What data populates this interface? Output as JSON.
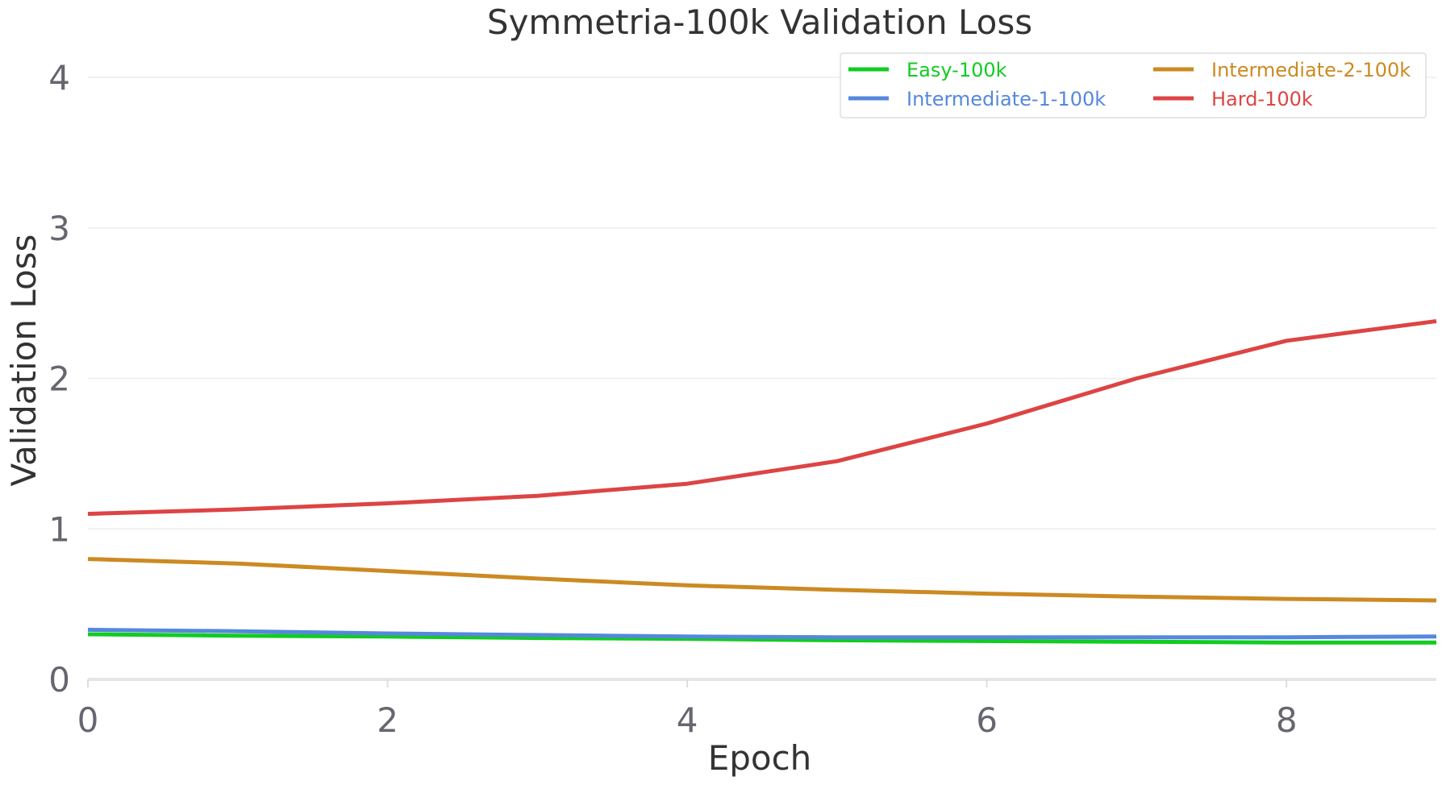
{
  "chart_data": {
    "type": "line",
    "title": "Symmetria-100k Validation Loss",
    "xlabel": "Epoch",
    "ylabel": "Validation Loss",
    "x": [
      0,
      1,
      2,
      3,
      4,
      5,
      6,
      7,
      8,
      9
    ],
    "xlim": [
      0,
      9
    ],
    "ylim": [
      0,
      4.3
    ],
    "xticks": [
      0,
      2,
      4,
      6,
      8
    ],
    "yticks": [
      0,
      1,
      2,
      3,
      4
    ],
    "grid": "horizontal",
    "legend_position": "top-right",
    "series": [
      {
        "name": "Easy-100k",
        "color": "#11cc22",
        "values": [
          0.3,
          0.29,
          0.285,
          0.275,
          0.27,
          0.26,
          0.255,
          0.25,
          0.245,
          0.245
        ]
      },
      {
        "name": "Intermediate-1-100k",
        "color": "#5588dd",
        "values": [
          0.33,
          0.32,
          0.305,
          0.295,
          0.285,
          0.28,
          0.28,
          0.28,
          0.28,
          0.285
        ]
      },
      {
        "name": "Intermediate-2-100k",
        "color": "#cc8a22",
        "values": [
          0.8,
          0.77,
          0.72,
          0.67,
          0.625,
          0.595,
          0.57,
          0.55,
          0.535,
          0.525
        ]
      },
      {
        "name": "Hard-100k",
        "color": "#dd4444",
        "values": [
          1.1,
          1.13,
          1.17,
          1.22,
          1.3,
          1.45,
          1.7,
          2.0,
          2.25,
          2.38
        ]
      }
    ]
  }
}
